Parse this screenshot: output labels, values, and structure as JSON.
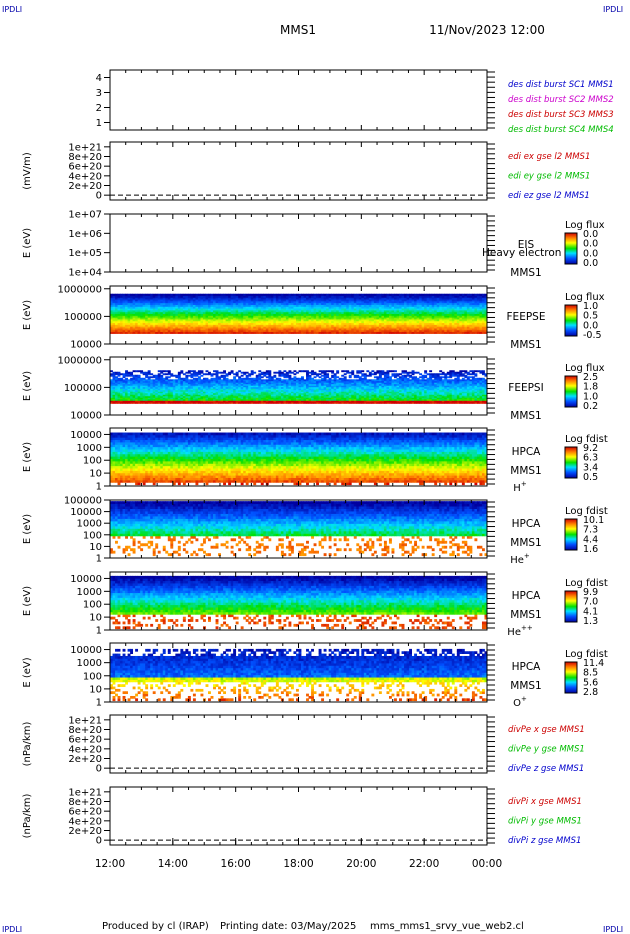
{
  "header": {
    "left_mark": "IPDLI",
    "right_mark": "IPDLI",
    "title": "MMS1",
    "datetime": "11/Nov/2023 12:00"
  },
  "footer": {
    "left_mark": "IPDLI",
    "right_mark": "IPDLI",
    "produced_by": "Produced by cl (IRAP)",
    "printing_date": "Printing date: 03/May/2025",
    "script": "mms_mms1_srvy_vue_web2.cl"
  },
  "chart_data": [
    {
      "id": "p1",
      "type": "line",
      "ylabel": "",
      "yticks": [
        "4",
        "3",
        "2",
        "1"
      ],
      "ylim": [
        0.5,
        4.5
      ],
      "legend": [
        {
          "text": "des dist burst SC1 MMS1",
          "color": "#0000cc"
        },
        {
          "text": "des dist burst SC2 MMS2",
          "color": "#cc00cc"
        },
        {
          "text": "des dist burst SC3 MMS3",
          "color": "#cc0000"
        },
        {
          "text": "des dist burst SC4 MMS4",
          "color": "#00bb00"
        }
      ]
    },
    {
      "id": "p2",
      "type": "line",
      "ylabel": "(mV/m)",
      "yticks": [
        "1e+21",
        "8e+20",
        "6e+20",
        "4e+20",
        "2e+20",
        "0"
      ],
      "ylim": [
        -1e+20,
        1.1e+21
      ],
      "dashed_zero": true,
      "legend": [
        {
          "text": "edi ex gse l2 MMS1",
          "color": "#cc0000"
        },
        {
          "text": "edi ey gse l2 MMS1",
          "color": "#00bb00"
        },
        {
          "text": "edi ez gse l2 MMS1",
          "color": "#0000cc"
        }
      ]
    },
    {
      "id": "p3",
      "type": "heatmap",
      "ylabel": "E (eV)",
      "yticks": [
        "1e+07",
        "1e+06",
        "1e+05",
        "1e+04"
      ],
      "log_range": [
        4,
        7
      ],
      "inst": [
        "EIS",
        "MMS1"
      ],
      "overlay": "Heavy electron to",
      "colorbar_title": "Log flux",
      "colorbar_ticks": [
        "0.0",
        "0.0",
        "0.0",
        "0.0"
      ],
      "empty": true
    },
    {
      "id": "p4",
      "type": "heatmap",
      "ylabel": "E (eV)",
      "yticks": [
        "1000000",
        "100000",
        "10000"
      ],
      "log_range": [
        4,
        6.1
      ],
      "inst": [
        "FEEPSE",
        "MMS1"
      ],
      "colorbar_title": "Log flux",
      "colorbar_ticks": [
        "1.0",
        "0.5",
        "0.0",
        "-0.5"
      ]
    },
    {
      "id": "p5",
      "type": "heatmap",
      "ylabel": "E (eV)",
      "yticks": [
        "1000000",
        "100000",
        "10000"
      ],
      "log_range": [
        4,
        6.1
      ],
      "inst": [
        "FEEPSI",
        "MMS1"
      ],
      "colorbar_title": "Log flux",
      "colorbar_ticks": [
        "2.5",
        "1.8",
        "1.0",
        "0.2"
      ]
    },
    {
      "id": "p6",
      "type": "heatmap",
      "ylabel": "E (eV)",
      "yticks": [
        "10000",
        "1000",
        "100",
        "10",
        "1"
      ],
      "log_range": [
        0,
        4.5
      ],
      "inst": [
        "HPCA",
        "MMS1"
      ],
      "species": "H",
      "species_sup": "+",
      "colorbar_title": "Log fdist",
      "colorbar_ticks": [
        "9.2",
        "6.3",
        "3.4",
        "0.5"
      ]
    },
    {
      "id": "p7",
      "type": "heatmap",
      "ylabel": "E (eV)",
      "yticks": [
        "100000",
        "10000",
        "1000",
        "100",
        "10",
        "1"
      ],
      "log_range": [
        0,
        5
      ],
      "inst": [
        "HPCA",
        "MMS1"
      ],
      "species": "He",
      "species_sup": "+",
      "colorbar_title": "Log fdist",
      "colorbar_ticks": [
        "10.1",
        "7.3",
        "4.4",
        "1.6"
      ]
    },
    {
      "id": "p8",
      "type": "heatmap",
      "ylabel": "E (eV)",
      "yticks": [
        "10000",
        "1000",
        "100",
        "10",
        "1"
      ],
      "log_range": [
        0,
        4.5
      ],
      "inst": [
        "HPCA",
        "MMS1"
      ],
      "species": "He",
      "species_sup": "++",
      "colorbar_title": "Log fdist",
      "colorbar_ticks": [
        "9.9",
        "7.0",
        "4.1",
        "1.3"
      ]
    },
    {
      "id": "p9",
      "type": "heatmap",
      "ylabel": "E (eV)",
      "yticks": [
        "10000",
        "1000",
        "100",
        "10",
        "1"
      ],
      "log_range": [
        0,
        4.5
      ],
      "inst": [
        "HPCA",
        "MMS1"
      ],
      "species": "O",
      "species_sup": "+",
      "colorbar_title": "Log fdist",
      "colorbar_ticks": [
        "11.4",
        "8.5",
        "5.6",
        "2.8"
      ]
    },
    {
      "id": "p10",
      "type": "line",
      "ylabel": "(nPa/km)",
      "yticks": [
        "1e+21",
        "8e+20",
        "6e+20",
        "4e+20",
        "2e+20",
        "0"
      ],
      "ylim": [
        -1e+20,
        1.1e+21
      ],
      "dashed_zero": true,
      "legend": [
        {
          "text": "divPe x gse MMS1",
          "color": "#cc0000"
        },
        {
          "text": "divPe y gse MMS1",
          "color": "#00bb00"
        },
        {
          "text": "divPe z gse MMS1",
          "color": "#0000cc"
        }
      ]
    },
    {
      "id": "p11",
      "type": "line",
      "ylabel": "(nPa/km)",
      "yticks": [
        "1e+21",
        "8e+20",
        "6e+20",
        "4e+20",
        "2e+20",
        "0"
      ],
      "ylim": [
        -1e+20,
        1.1e+21
      ],
      "dashed_zero": true,
      "legend": [
        {
          "text": "divPi x gse MMS1",
          "color": "#cc0000"
        },
        {
          "text": "divPi y gse MMS1",
          "color": "#00bb00"
        },
        {
          "text": "divPi z gse MMS1",
          "color": "#0000cc"
        }
      ]
    }
  ],
  "xaxis": {
    "ticks": [
      "12:00",
      "14:00",
      "16:00",
      "18:00",
      "20:00",
      "22:00",
      "00:00"
    ]
  }
}
